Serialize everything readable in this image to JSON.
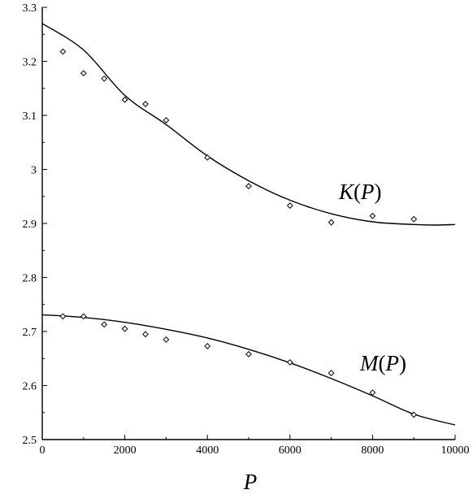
{
  "chart_data": {
    "type": "scatter",
    "xlabel": "P",
    "ylabel": "",
    "xlim": [
      0,
      10000
    ],
    "ylim": [
      2.5,
      3.3
    ],
    "x_ticks": [
      0,
      2000,
      4000,
      6000,
      8000,
      10000
    ],
    "y_ticks": [
      2.5,
      2.6,
      2.7,
      2.8,
      2.9,
      3,
      3.1,
      3.2,
      3.3
    ],
    "x_tick_labels": [
      "0",
      "2000",
      "4000",
      "6000",
      "8000",
      "10000"
    ],
    "y_tick_labels": [
      "2.5",
      "2.6",
      "2.7",
      "2.8",
      "2.9",
      "3",
      "3.1",
      "3.2",
      "3.3"
    ],
    "grid": false,
    "legend": "none",
    "series": [
      {
        "name": "K(P)",
        "label_func": "K",
        "label_var": "P",
        "marker": "diamond",
        "x": [
          500,
          1000,
          1500,
          2000,
          2500,
          3000,
          4000,
          5000,
          6000,
          7000,
          8000,
          9000
        ],
        "y": [
          3.218,
          3.178,
          3.168,
          3.129,
          3.121,
          3.091,
          3.022,
          2.969,
          2.933,
          2.902,
          2.914,
          2.908
        ],
        "fit": [
          [
            0,
            3.27
          ],
          [
            1000,
            3.221
          ],
          [
            2000,
            3.137
          ],
          [
            3000,
            3.083
          ],
          [
            4000,
            3.025
          ],
          [
            5000,
            2.979
          ],
          [
            6000,
            2.943
          ],
          [
            7000,
            2.918
          ],
          [
            8000,
            2.903
          ],
          [
            9000,
            2.898
          ],
          [
            9500,
            2.897
          ],
          [
            10000,
            2.898
          ]
        ]
      },
      {
        "name": "M(P)",
        "label_func": "M",
        "label_var": "P",
        "marker": "diamond",
        "x": [
          500,
          1000,
          1500,
          2000,
          2500,
          3000,
          4000,
          5000,
          6000,
          7000,
          8000,
          9000
        ],
        "y": [
          2.728,
          2.728,
          2.713,
          2.705,
          2.695,
          2.685,
          2.673,
          2.658,
          2.643,
          2.623,
          2.587,
          2.546
        ],
        "fit": [
          [
            0,
            2.731
          ],
          [
            1000,
            2.726
          ],
          [
            2000,
            2.717
          ],
          [
            3000,
            2.704
          ],
          [
            4000,
            2.688
          ],
          [
            5000,
            2.667
          ],
          [
            6000,
            2.642
          ],
          [
            7000,
            2.613
          ],
          [
            8000,
            2.581
          ],
          [
            9000,
            2.547
          ],
          [
            10000,
            2.527
          ]
        ]
      }
    ]
  }
}
